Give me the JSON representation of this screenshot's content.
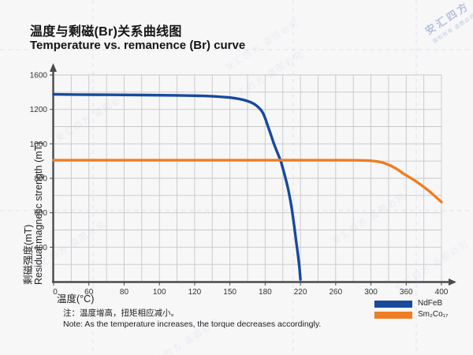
{
  "page": {
    "background": "#f7f7f8"
  },
  "header": {
    "title_zh": "温度与剩磁(Br)关系曲线图",
    "title_en": "Temperature vs. remanence (Br) curve"
  },
  "chart_data": {
    "type": "line",
    "title_zh": "温度与剩磁(Br)关系曲线图",
    "title_en": "Temperature vs. remanence (Br) curve",
    "x_axis": {
      "label": "温度(°C)",
      "tick_labels": [
        "0",
        "60",
        "80",
        "100",
        "120",
        "150",
        "180",
        "220",
        "260",
        "300",
        "360",
        "400"
      ],
      "spacing": "ticks printed at equal visual spacing (non-linear value scale)"
    },
    "y_axis": {
      "label_zh": "剩磁强度(mT)",
      "label_en": "Residual magnetic strength (mT)",
      "tick_labels": [
        "1600",
        "1200",
        "1000",
        "800",
        "600",
        "400"
      ],
      "bottom_value": 0,
      "unit": "mT"
    },
    "grid": {
      "minor_subdivisions": 2,
      "color": "#c7c7c7"
    },
    "series": [
      {
        "name": "NdFeB",
        "color": "#17499d",
        "points": [
          [
            0,
            1375
          ],
          [
            40,
            1372
          ],
          [
            80,
            1368
          ],
          [
            110,
            1363
          ],
          [
            130,
            1355
          ],
          [
            145,
            1343
          ],
          [
            155,
            1328
          ],
          [
            165,
            1297
          ],
          [
            172,
            1250
          ],
          [
            178,
            1180
          ],
          [
            184,
            1090
          ],
          [
            190,
            1000
          ],
          [
            195,
            935
          ],
          [
            198,
            895
          ],
          [
            202,
            820
          ],
          [
            206,
            740
          ],
          [
            210,
            630
          ],
          [
            213,
            520
          ],
          [
            215,
            440
          ],
          [
            217,
            330
          ],
          [
            218.5,
            200
          ],
          [
            219.5,
            90
          ],
          [
            220,
            25
          ]
        ]
      },
      {
        "name": "Sm₂Co₁₇",
        "color": "#ee7d23",
        "points": [
          [
            0,
            905
          ],
          [
            50,
            905
          ],
          [
            100,
            905
          ],
          [
            150,
            905
          ],
          [
            200,
            905
          ],
          [
            250,
            905
          ],
          [
            290,
            904
          ],
          [
            310,
            898
          ],
          [
            325,
            885
          ],
          [
            340,
            862
          ],
          [
            355,
            828
          ],
          [
            370,
            786
          ],
          [
            385,
            730
          ],
          [
            400,
            662
          ]
        ]
      }
    ],
    "legend": {
      "position": "bottom-right",
      "items": [
        "NdFeB",
        "Sm₂Co₁₇"
      ]
    }
  },
  "notes": {
    "zh": "注：温度增高，扭矩相应减小。",
    "en": "Note: As the temperature increases, the torque decreases accordingly."
  },
  "watermark": {
    "brand": "安汇四方",
    "brand_sub": "版权所有 盗图必究",
    "tile": "安汇四方 盗图必究",
    "tile_color": "#8a93c0",
    "guide_color": "#c9cfe6"
  },
  "colors": {
    "axis": "#4a4a4a",
    "grid": "#c7c7c7",
    "tick_text": "#333333"
  }
}
